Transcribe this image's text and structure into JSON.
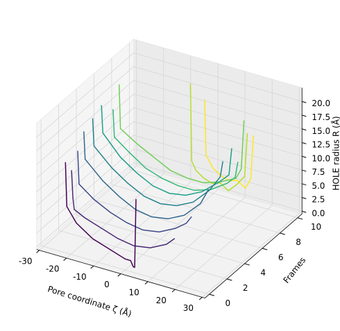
{
  "chart_data": {
    "type": "line3d",
    "xlabel": "Pore coordinate ζ (Å)",
    "ylabel": "Frames",
    "zlabel": "HOLE radius R (Å)",
    "xlim": [
      -31,
      31
    ],
    "ylim": [
      -0.5,
      10.5
    ],
    "zlim": [
      -0.5,
      22.5
    ],
    "xticks": [
      -30,
      -20,
      -10,
      0,
      10,
      20,
      30
    ],
    "yticks": [
      0,
      2,
      4,
      6,
      8,
      10
    ],
    "zticks": [
      {
        "value": 0,
        "label": "0.0"
      },
      {
        "value": 2.5,
        "label": "2.5"
      },
      {
        "value": 5,
        "label": "5.0"
      },
      {
        "value": 7.5,
        "label": "7.5"
      },
      {
        "value": 10,
        "label": "10.0"
      },
      {
        "value": 12.5,
        "label": "12.5"
      },
      {
        "value": 15,
        "label": "15.0"
      },
      {
        "value": 17.5,
        "label": "17.5"
      },
      {
        "value": 20,
        "label": "20.0"
      }
    ],
    "grid": true,
    "series": [
      {
        "frame": 0,
        "color": "#440154",
        "x": [
          -22,
          -21.5,
          -18,
          -12,
          -6,
          0,
          2,
          3,
          3.5,
          4
        ],
        "values": [
          16,
          8,
          5.5,
          3.5,
          2.5,
          1.5,
          1.5,
          0.5,
          0.5,
          13
        ]
      },
      {
        "frame": 1,
        "color": "#482878",
        "x": [
          -23,
          -22.5,
          -22,
          -18,
          -12,
          -6,
          0,
          6,
          12,
          15
        ],
        "values": [
          13,
          8,
          6,
          5,
          4,
          3,
          2.5,
          3,
          4.5,
          6
        ]
      },
      {
        "frame": 2,
        "color": "#3e4a89",
        "x": [
          -24,
          -23.5,
          -18,
          -12,
          -6,
          0,
          6,
          12,
          16,
          18
        ],
        "values": [
          15,
          9,
          7,
          5.5,
          4.5,
          4,
          4.5,
          6,
          7.5,
          9
        ]
      },
      {
        "frame": 3,
        "color": "#31688e",
        "x": [
          -25,
          -24.5,
          -18,
          -12,
          -6,
          0,
          6,
          12,
          18,
          20,
          21
        ],
        "values": [
          17,
          12,
          9,
          7,
          5.5,
          5,
          5.5,
          7,
          10,
          12,
          13
        ]
      },
      {
        "frame": 4,
        "color": "#26828e",
        "x": [
          -25,
          -24.5,
          -18,
          -12,
          -6,
          0,
          6,
          12,
          18,
          22,
          23
        ],
        "values": [
          18,
          13,
          10,
          8,
          6.5,
          6,
          6.5,
          8,
          11,
          14,
          17
        ]
      },
      {
        "frame": 5,
        "color": "#1f9e89",
        "x": [
          -25,
          -24.5,
          -18,
          -12,
          -6,
          0,
          6,
          12,
          18,
          22,
          23
        ],
        "values": [
          19,
          14,
          10.5,
          8.5,
          7,
          6.5,
          7,
          8.5,
          11,
          13,
          18
        ]
      },
      {
        "frame": 6,
        "color": "#35b779",
        "x": [
          -24,
          -23.5,
          -18,
          -12,
          -6,
          0,
          6,
          12,
          18,
          21,
          22
        ],
        "values": [
          17,
          12,
          10,
          8,
          7,
          6.5,
          6.5,
          7.5,
          9.5,
          11,
          14
        ]
      },
      {
        "frame": 7,
        "color": "#6ece58",
        "x": [
          -25,
          -24.5,
          -18,
          -12,
          -6,
          0,
          6,
          12,
          18,
          20,
          21
        ],
        "values": [
          20,
          12,
          10,
          8.5,
          7,
          6.5,
          6.5,
          7.5,
          9,
          11,
          20
        ]
      },
      {
        "frame": 8,
        "color": "#b5de2b",
        "x": [
          -2,
          -1.5,
          0,
          3,
          6,
          9,
          12,
          15,
          18,
          19
        ],
        "values": [
          22,
          8,
          6.5,
          5.5,
          5,
          5.5,
          4.5,
          6,
          8,
          16
        ]
      },
      {
        "frame": 9,
        "color": "#fde725",
        "x": [
          0,
          0.5,
          3,
          6,
          9,
          12,
          15,
          17,
          18
        ],
        "values": [
          18,
          8,
          6,
          5,
          4.5,
          5,
          4,
          6,
          14
        ]
      }
    ]
  }
}
